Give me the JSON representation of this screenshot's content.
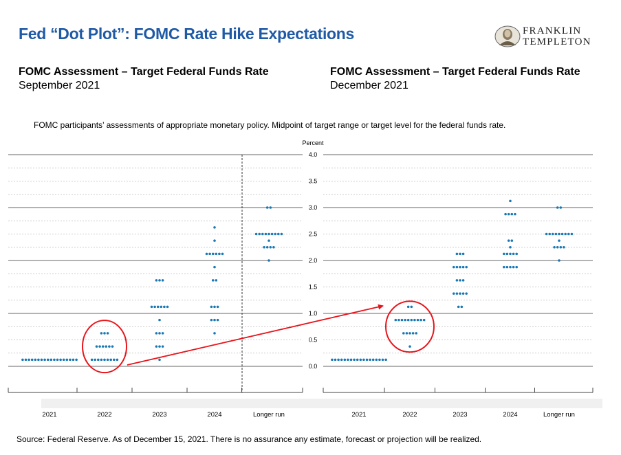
{
  "title": "Fed “Dot Plot”: FOMC Rate Hike Expectations",
  "logo": {
    "line1": "FRANKLIN",
    "line2": "TEMPLETON"
  },
  "panels": [
    {
      "heading": "FOMC Assessment – Target Federal Funds Rate",
      "date": "September 2021"
    },
    {
      "heading": "FOMC Assessment – Target Federal Funds Rate",
      "date": "December 2021"
    }
  ],
  "note": "FOMC participants’ assessments of appropriate monetary policy. Midpoint of target range or target level for the federal funds rate.",
  "source": "Source: Federal Reserve. As of December 15, 2021. There is no assurance any estimate, forecast or projection will be realized.",
  "colors": {
    "title": "#1f5aa6",
    "dot": "#1a78b4",
    "highlight": "#e8151b",
    "grid": "#888888"
  },
  "chart_data": [
    {
      "type": "scatter",
      "title": "September 2021",
      "ylabel": "Percent",
      "ylim": [
        0,
        4.0
      ],
      "yticks": [
        "0.0",
        "0.5",
        "1.0",
        "1.5",
        "2.0",
        "2.5",
        "3.0",
        "3.5",
        "4.0"
      ],
      "categories": [
        "2021",
        "2022",
        "2023",
        "2024",
        "Longer run"
      ],
      "dots": {
        "2021": [
          [
            0.125,
            18
          ]
        ],
        "2022": [
          [
            0.125,
            9
          ],
          [
            0.375,
            6
          ],
          [
            0.625,
            3
          ]
        ],
        "2023": [
          [
            0.125,
            1
          ],
          [
            0.375,
            3
          ],
          [
            0.625,
            3
          ],
          [
            0.875,
            1
          ],
          [
            1.125,
            6
          ],
          [
            1.625,
            3
          ]
        ],
        "2024": [
          [
            0.625,
            1
          ],
          [
            0.875,
            3
          ],
          [
            1.125,
            3
          ],
          [
            1.625,
            2
          ],
          [
            1.875,
            1
          ],
          [
            2.125,
            6
          ],
          [
            2.375,
            1
          ],
          [
            2.625,
            1
          ]
        ],
        "Longer run": [
          [
            2.0,
            1
          ],
          [
            2.25,
            4
          ],
          [
            2.375,
            1
          ],
          [
            2.5,
            9
          ],
          [
            3.0,
            2
          ]
        ]
      },
      "highlight": "2022"
    },
    {
      "type": "scatter",
      "title": "December 2021",
      "ylim": [
        0,
        4.0
      ],
      "categories": [
        "2021",
        "2022",
        "2023",
        "2024",
        "Longer run"
      ],
      "dots": {
        "2021": [
          [
            0.125,
            18
          ]
        ],
        "2022": [
          [
            0.375,
            1
          ],
          [
            0.625,
            5
          ],
          [
            0.875,
            10
          ],
          [
            1.125,
            2
          ]
        ],
        "2023": [
          [
            1.125,
            2
          ],
          [
            1.375,
            5
          ],
          [
            1.625,
            3
          ],
          [
            1.875,
            5
          ],
          [
            2.125,
            3
          ]
        ],
        "2024": [
          [
            1.875,
            5
          ],
          [
            2.125,
            5
          ],
          [
            2.25,
            1
          ],
          [
            2.375,
            2
          ],
          [
            2.875,
            4
          ],
          [
            3.125,
            1
          ]
        ],
        "Longer run": [
          [
            2.0,
            1
          ],
          [
            2.25,
            4
          ],
          [
            2.375,
            1
          ],
          [
            2.5,
            9
          ],
          [
            3.0,
            2
          ]
        ]
      },
      "highlight": "2022"
    }
  ]
}
